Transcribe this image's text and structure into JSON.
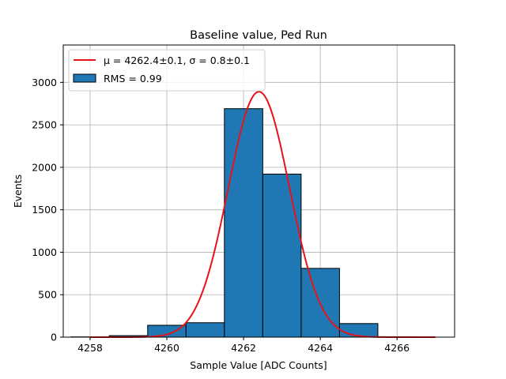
{
  "chart_data": {
    "type": "bar",
    "title": "Baseline value, Ped Run",
    "xlabel": "Sample Value [ADC Counts]",
    "ylabel": "Events",
    "xlim": [
      4257.3,
      4267.5
    ],
    "ylim": [
      0,
      3440
    ],
    "xticks": [
      4258,
      4260,
      4262,
      4264,
      4266
    ],
    "yticks": [
      0,
      500,
      1000,
      1500,
      2000,
      2500,
      3000
    ],
    "grid": true,
    "legend_position": "top-left",
    "bins": [
      {
        "x0": 4257.5,
        "x1": 4258.5,
        "value": 3
      },
      {
        "x0": 4258.5,
        "x1": 4259.5,
        "value": 18
      },
      {
        "x0": 4259.5,
        "x1": 4260.5,
        "value": 140
      },
      {
        "x0": 4260.5,
        "x1": 4261.5,
        "value": 170
      },
      {
        "x0": 4261.5,
        "x1": 4262.5,
        "value": 2690
      },
      {
        "x0": 4262.5,
        "x1": 4263.5,
        "value": 1920
      },
      {
        "x0": 4263.5,
        "x1": 4264.5,
        "value": 810
      },
      {
        "x0": 4264.5,
        "x1": 4265.5,
        "value": 160
      },
      {
        "x0": 4265.5,
        "x1": 4266.5,
        "value": 5
      }
    ],
    "fit": {
      "type": "gaussian",
      "mu": 4262.4,
      "sigma": 0.8,
      "amplitude": 2890,
      "x_range": [
        4258,
        4267
      ]
    },
    "series": [
      {
        "name": "μ = 4262.4±0.1, σ = 0.8±0.1",
        "kind": "line",
        "color": "#e8131a"
      },
      {
        "name": "RMS = 0.99",
        "kind": "bar",
        "color": "#1f77b4"
      }
    ]
  }
}
